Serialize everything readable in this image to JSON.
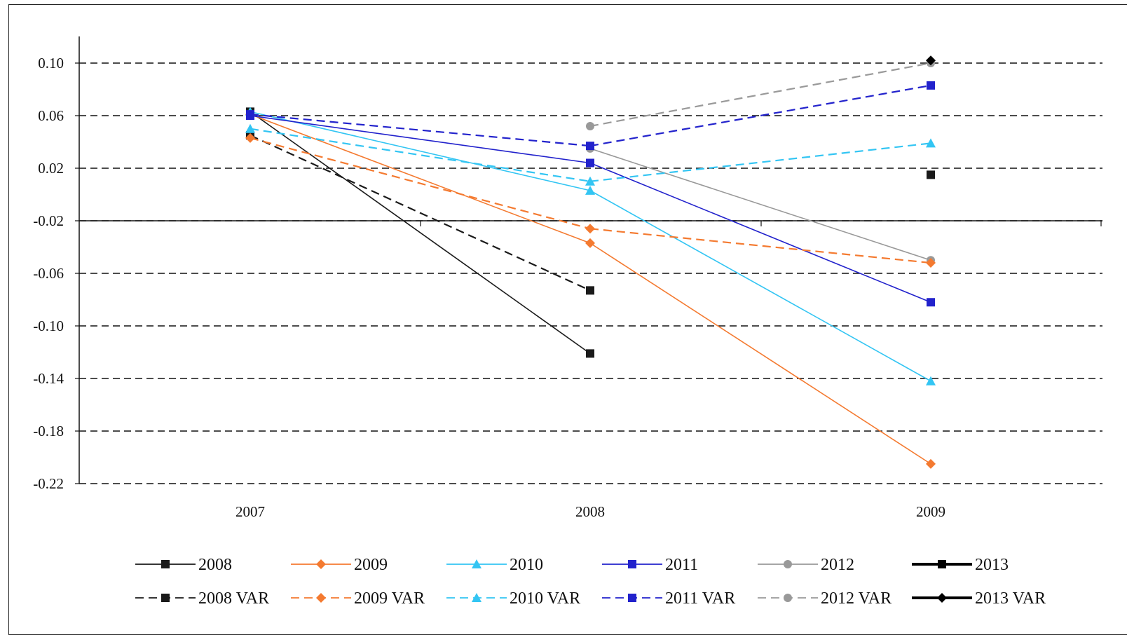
{
  "chart_data": {
    "type": "line",
    "x": [
      "2007",
      "2008",
      "2009"
    ],
    "ylim": [
      -0.22,
      0.12
    ],
    "yticks": [
      "0.10",
      "0.06",
      "0.02",
      "-0.02",
      "-0.06",
      "-0.10",
      "-0.14",
      "-0.18",
      "-0.22"
    ],
    "ytick_values": [
      0.1,
      0.06,
      0.02,
      -0.02,
      -0.06,
      -0.1,
      -0.14,
      -0.18,
      -0.22
    ],
    "grid": "horizontal dashed",
    "legend_position": "bottom",
    "title": "",
    "xlabel": "",
    "ylabel": "",
    "series": [
      {
        "name": "2008",
        "values": [
          0.063,
          -0.121,
          null
        ],
        "color": "#1a1a1a",
        "dash": "solid",
        "marker": "square",
        "bold": false
      },
      {
        "name": "2009",
        "values": [
          0.061,
          -0.037,
          -0.205
        ],
        "color": "#f47a30",
        "dash": "solid",
        "marker": "diamond",
        "bold": false
      },
      {
        "name": "2010",
        "values": [
          0.063,
          0.003,
          -0.142
        ],
        "color": "#33c5f3",
        "dash": "solid",
        "marker": "triangle",
        "bold": false
      },
      {
        "name": "2011",
        "values": [
          0.06,
          0.024,
          -0.082
        ],
        "color": "#2222cc",
        "dash": "solid",
        "marker": "square",
        "bold": false
      },
      {
        "name": "2012",
        "values": [
          null,
          0.035,
          -0.05
        ],
        "color": "#999999",
        "dash": "solid",
        "marker": "circle",
        "bold": false
      },
      {
        "name": "2013",
        "values": [
          null,
          null,
          null
        ],
        "color": "#000000",
        "dash": "solid",
        "marker": "square",
        "bold": true
      },
      {
        "name": "2008 VAR",
        "values": [
          0.045,
          -0.073,
          0.015
        ],
        "color": "#1a1a1a",
        "dash": "dashed",
        "marker": "square",
        "bold": false
      },
      {
        "name": "2009 VAR",
        "values": [
          0.043,
          -0.026,
          -0.052
        ],
        "color": "#f47a30",
        "dash": "dashed",
        "marker": "diamond",
        "bold": false
      },
      {
        "name": "2010 VAR",
        "values": [
          0.05,
          0.01,
          0.039
        ],
        "color": "#33c5f3",
        "dash": "dashed",
        "marker": "triangle",
        "bold": false
      },
      {
        "name": "2011 VAR",
        "values": [
          0.061,
          0.037,
          0.083
        ],
        "color": "#2222cc",
        "dash": "dashed",
        "marker": "square",
        "bold": false
      },
      {
        "name": "2012 VAR",
        "values": [
          null,
          0.052,
          0.1
        ],
        "color": "#999999",
        "dash": "dashed",
        "marker": "circle",
        "bold": false
      },
      {
        "name": "2013 VAR",
        "values": [
          null,
          null,
          0.102
        ],
        "color": "#000000",
        "dash": "solid",
        "marker": "diamond",
        "bold": true
      }
    ],
    "line_segments": [
      {
        "series": "2008 VAR",
        "from": 0,
        "to": 1
      }
    ]
  }
}
